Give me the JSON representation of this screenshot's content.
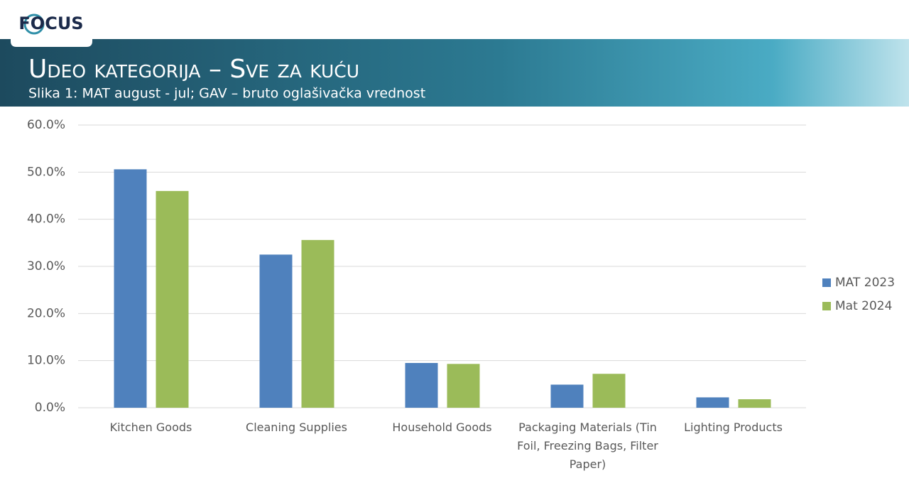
{
  "logo": "FOCUS",
  "chart_data": {
    "type": "bar",
    "title": "Udeo kategorija – Sve za kuću",
    "subtitle": "Slika 1: MAT august - jul; GAV – bruto oglašivačka vrednost",
    "categories": [
      "Kitchen Goods",
      "Cleaning Supplies",
      "Household Goods",
      "Packaging Materials (Tin Foil, Freezing Bags, Filter Paper)",
      "Lighting Products"
    ],
    "series": [
      {
        "name": "MAT 2023",
        "color": "#4f81bd",
        "values": [
          50.6,
          32.5,
          9.5,
          4.9,
          2.2
        ]
      },
      {
        "name": "Mat 2024",
        "color": "#9bbb59",
        "values": [
          46.0,
          35.6,
          9.3,
          7.2,
          1.8
        ]
      }
    ],
    "ylim": [
      0,
      60
    ],
    "yticks": [
      {
        "value": 0,
        "label": "0.0%"
      },
      {
        "value": 10,
        "label": "10.0%"
      },
      {
        "value": 20,
        "label": "20.0%"
      },
      {
        "value": 30,
        "label": "30.0%"
      },
      {
        "value": 40,
        "label": "40.0%"
      },
      {
        "value": 50,
        "label": "50.0%"
      },
      {
        "value": 60,
        "label": "60.0%"
      }
    ],
    "grid": true,
    "legend": "right"
  }
}
